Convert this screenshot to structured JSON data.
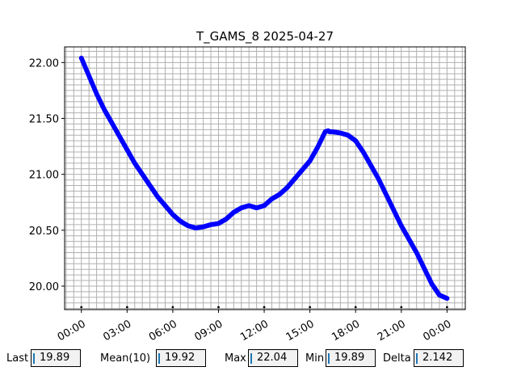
{
  "chart_data": {
    "type": "scatter",
    "title": "T_GAMS_8 2025-04-27",
    "xlabel": "",
    "ylabel": "",
    "x_unit": "hours",
    "x_tick_labels": [
      "00:00",
      "03:00",
      "06:00",
      "09:00",
      "12:00",
      "15:00",
      "18:00",
      "21:00",
      "00:00"
    ],
    "x_ticks": [
      0,
      3,
      6,
      9,
      12,
      15,
      18,
      21,
      24
    ],
    "xlim": [
      -1.1,
      25.2
    ],
    "ylim": [
      19.79,
      22.14
    ],
    "y_ticks": [
      20.0,
      20.5,
      21.0,
      21.5,
      22.0
    ],
    "y_tick_labels": [
      "20.00",
      "20.50",
      "21.00",
      "21.50",
      "22.00"
    ],
    "grid": true,
    "color": "#0000ff",
    "series": [
      {
        "x": [
          0.0,
          0.5,
          1.0,
          1.5,
          2.0,
          2.5,
          3.0,
          3.5,
          4.0,
          4.5,
          5.0,
          5.5,
          6.0,
          6.5,
          7.0,
          7.5,
          8.0,
          8.5,
          9.0,
          9.5,
          10.0,
          10.5,
          11.0,
          11.5,
          12.0,
          12.5,
          13.0,
          13.5,
          14.0,
          14.5,
          15.0,
          15.5,
          16.0,
          16.2,
          16.3,
          16.5,
          17.0,
          17.5,
          18.0,
          18.5,
          19.0,
          19.5,
          20.0,
          20.5,
          21.0,
          21.5,
          22.0,
          22.5,
          23.0,
          23.5,
          24.0
        ],
        "y": [
          22.04,
          21.88,
          21.72,
          21.58,
          21.46,
          21.34,
          21.22,
          21.1,
          21.0,
          20.9,
          20.8,
          20.72,
          20.64,
          20.58,
          20.54,
          20.52,
          20.53,
          20.55,
          20.56,
          20.6,
          20.66,
          20.7,
          20.72,
          20.7,
          20.72,
          20.78,
          20.82,
          20.88,
          20.96,
          21.04,
          21.12,
          21.24,
          21.38,
          21.39,
          21.38,
          21.38,
          21.37,
          21.35,
          21.3,
          21.2,
          21.08,
          20.96,
          20.82,
          20.68,
          20.54,
          20.42,
          20.3,
          20.16,
          20.02,
          19.92,
          19.89
        ]
      }
    ]
  },
  "stats": [
    {
      "label": "Last",
      "value": "19.89"
    },
    {
      "label": "Mean(10)",
      "value": "19.92"
    },
    {
      "label": "Max",
      "value": "22.04"
    },
    {
      "label": "Min",
      "value": "19.89"
    },
    {
      "label": "Delta",
      "value": "2.142"
    }
  ]
}
